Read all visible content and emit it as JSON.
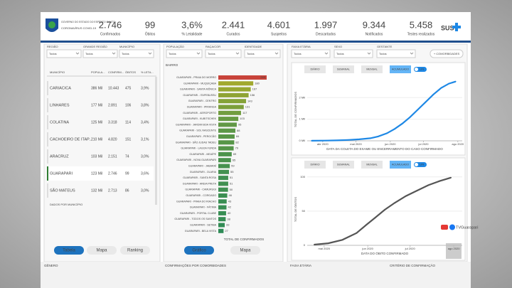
{
  "header": {
    "logo_title": "GOVERNO DO ESTADO DO ESPÍRITO SANTO",
    "logo_subtitle": "CORONAVÍRUS COVID-19",
    "logo_right": "SUS",
    "kpis": [
      {
        "value": "2.746",
        "label": "Confirmados"
      },
      {
        "value": "99",
        "label": "Óbitos"
      },
      {
        "value": "3,6%",
        "label": "% Letalidade"
      },
      {
        "value": "2.441",
        "label": "Curados"
      },
      {
        "value": "4.601",
        "label": "Suspeitos"
      },
      {
        "value": "1.997",
        "label": "Descartados"
      },
      {
        "value": "9.344",
        "label": "Notificados"
      },
      {
        "value": "5.458",
        "label": "Testes realizados"
      }
    ]
  },
  "filters": {
    "left": [
      {
        "label": "REGIÃO",
        "value": "Todos"
      },
      {
        "label": "GRANDE REGIÃO",
        "value": "Todos"
      },
      {
        "label": "MUNICÍPIO",
        "value": "Todos"
      }
    ],
    "middle": [
      {
        "label": "POPULAÇÃO",
        "value": "Todos"
      },
      {
        "label": "RAÇA/COR",
        "value": "Todos"
      },
      {
        "label": "IDENTIDADE",
        "value": "Todos"
      }
    ],
    "right": [
      {
        "label": "FAIXA ETÁRIA",
        "value": "Todos"
      },
      {
        "label": "SEXO",
        "value": "Todos"
      },
      {
        "label": "GESTANTE",
        "value": "Todos"
      }
    ]
  },
  "comorbidities_button": "+ COMORBIDADES",
  "table": {
    "columns": [
      "MUNICÍPIO",
      "POPULA...",
      "CONFIRM...",
      "ÓBITOS",
      "% LETA..."
    ],
    "rows": [
      [
        "CARIACICA",
        "386 Mil",
        "10.443",
        "475",
        "3,9%"
      ],
      [
        "LINHARES",
        "177 Mil",
        "2.891",
        "106",
        "3,8%"
      ],
      [
        "COLATINA",
        "125 Mil",
        "3.318",
        "114",
        "3,4%"
      ],
      [
        "CACHOEIRO DE ITAP...",
        "210 Mil",
        "4.820",
        "151",
        "3,1%"
      ],
      [
        "ARACRUZ",
        "103 Mil",
        "2.151",
        "74",
        "3,0%"
      ],
      [
        "GUARAPARI",
        "123 Mil",
        "2.746",
        "99",
        "3,6%"
      ],
      [
        "SÃO MATEUS",
        "132 Mil",
        "2.713",
        "86",
        "3,0%"
      ]
    ],
    "selected_row": 5,
    "caption": "DADOS POR MUNICÍPIO"
  },
  "left_buttons": [
    "Tabela",
    "Mapa",
    "Ranking"
  ],
  "middle_buttons": [
    "Gráfico",
    "Mapa"
  ],
  "footer": [
    "GÊNERO",
    "CONFIRMAÇÕES POR COMORBIDADES",
    "FAIXA ETÁRIA",
    "CRITÉRIO DE CONFIRMAÇÃO"
  ],
  "watermark": "TVGuarapari",
  "chart_data": [
    {
      "type": "bar",
      "title": "BAIRRO",
      "x_label": "TOTAL DE CONFIRMADOS",
      "categories": [
        "GUARAPARI - PRAIA DO MORRO",
        "GUARAPARI - MUQUIÇABA",
        "GUARAPARI - SANTA MÔNICA",
        "GUARAPARI - ITAPEBUSSU",
        "GUARAPARI - CENTRO",
        "GUARAPARI - IPIRANGA",
        "GUARAPARI - AEROPORTO",
        "GUARAPARI - KUBITSCHEK",
        "GUARAPARI - JARDIM BOA VISTA",
        "GUARAPARI - SOL NASCENTE",
        "GUARAPARI - PEROCÃO",
        "GUARAPARI - SÃO JUDAS TADEU",
        "GUARAPARI - LAGOA FUNDA",
        "GUARAPARI - MEAÍPE",
        "GUARAPARI - NOVA GUARAPARI",
        "GUARAPARI - JABARAÍ",
        "GUARAPARI - OLARIA",
        "GUARAPARI - SANTA ROSA",
        "GUARAPARI - AREIA PRETA",
        "GUARAPARI - CAMURUGI",
        "GUARAPARI - COROADO",
        "GUARAPARI - PRAIA DO RIACHO",
        "GUARAPARI - FÁTIMA",
        "GUARAPARI - PORTAL CLUBE",
        "GUARAPARI - TODOS OS SANTOS",
        "GUARAPARI - SETIBA",
        "GUARAPARI - BELA VISTA"
      ],
      "values": [
        249,
        180,
        167,
        156,
        143,
        131,
        117,
        103,
        95,
        88,
        84,
        82,
        79,
        69,
        65,
        59,
        55,
        51,
        51,
        50,
        46,
        43,
        42,
        40,
        38,
        33,
        27
      ],
      "color_scale": [
        "#2e8b57",
        "#b3ae28",
        "#c8433a"
      ]
    },
    {
      "type": "line",
      "y_label": "TOTAL DE CONFIRMADOS",
      "x_label": "DATA DA COLETA DO EXAME OU ENCERRAMENTO DO CASO CONFIRMADO",
      "buttons": [
        "DIÁRIO",
        "SEMANAL",
        "MENSAL",
        "ACUMULADO"
      ],
      "selected": 3,
      "toggle": "LIN",
      "x": [
        82,
        95,
        105,
        115,
        125,
        135,
        142,
        150,
        157,
        164,
        171,
        178,
        185,
        192,
        199,
        206,
        212
      ],
      "series": [
        {
          "color": "#1e88e5",
          "values": [
            2,
            10,
            20,
            40,
            70,
            120,
            200,
            350,
            550,
            800,
            1100,
            1450,
            1800,
            2150,
            2450,
            2650,
            2746
          ]
        }
      ],
      "xlim": [
        78,
        218
      ],
      "xticks": [
        {
          "value": 92,
          "label": "abr 2020"
        },
        {
          "value": 122,
          "label": "mai 2020"
        },
        {
          "value": 153,
          "label": "jun 2020"
        },
        {
          "value": 183,
          "label": "jul 2020"
        },
        {
          "value": 214,
          "label": "ago 2020"
        }
      ],
      "ylim": [
        0,
        2900
      ],
      "yticks": [
        {
          "value": 0,
          "label": "0 Mil"
        },
        {
          "value": 1000,
          "label": "1 Mil"
        },
        {
          "value": 2000,
          "label": "2 Mil"
        }
      ]
    },
    {
      "type": "line",
      "y_label": "TOTAL DE ÓBITOS",
      "x_label": "DATA DO ÓBITO CONFIRMADO",
      "buttons": [
        "DIÁRIO",
        "SEMANAL",
        "MENSAL",
        "ACUMULADO"
      ],
      "selected": 3,
      "toggle": "LIN",
      "x": [
        115,
        125,
        135,
        145,
        152,
        158,
        165,
        172,
        180,
        188,
        196,
        204,
        212
      ],
      "series": [
        {
          "color": "#555555",
          "values": [
            1,
            3,
            8,
            18,
            30,
            40,
            52,
            62,
            72,
            80,
            88,
            94,
            99
          ]
        }
      ],
      "xlim": [
        110,
        220
      ],
      "xticks": [
        {
          "value": 122,
          "label": "mai 2020"
        },
        {
          "value": 153,
          "label": "jun 2020"
        },
        {
          "value": 183,
          "label": "jul 2020"
        },
        {
          "value": 214,
          "label": "ago 2020"
        }
      ],
      "ylim": [
        0,
        105
      ],
      "yticks": [
        0,
        50,
        100
      ]
    }
  ]
}
